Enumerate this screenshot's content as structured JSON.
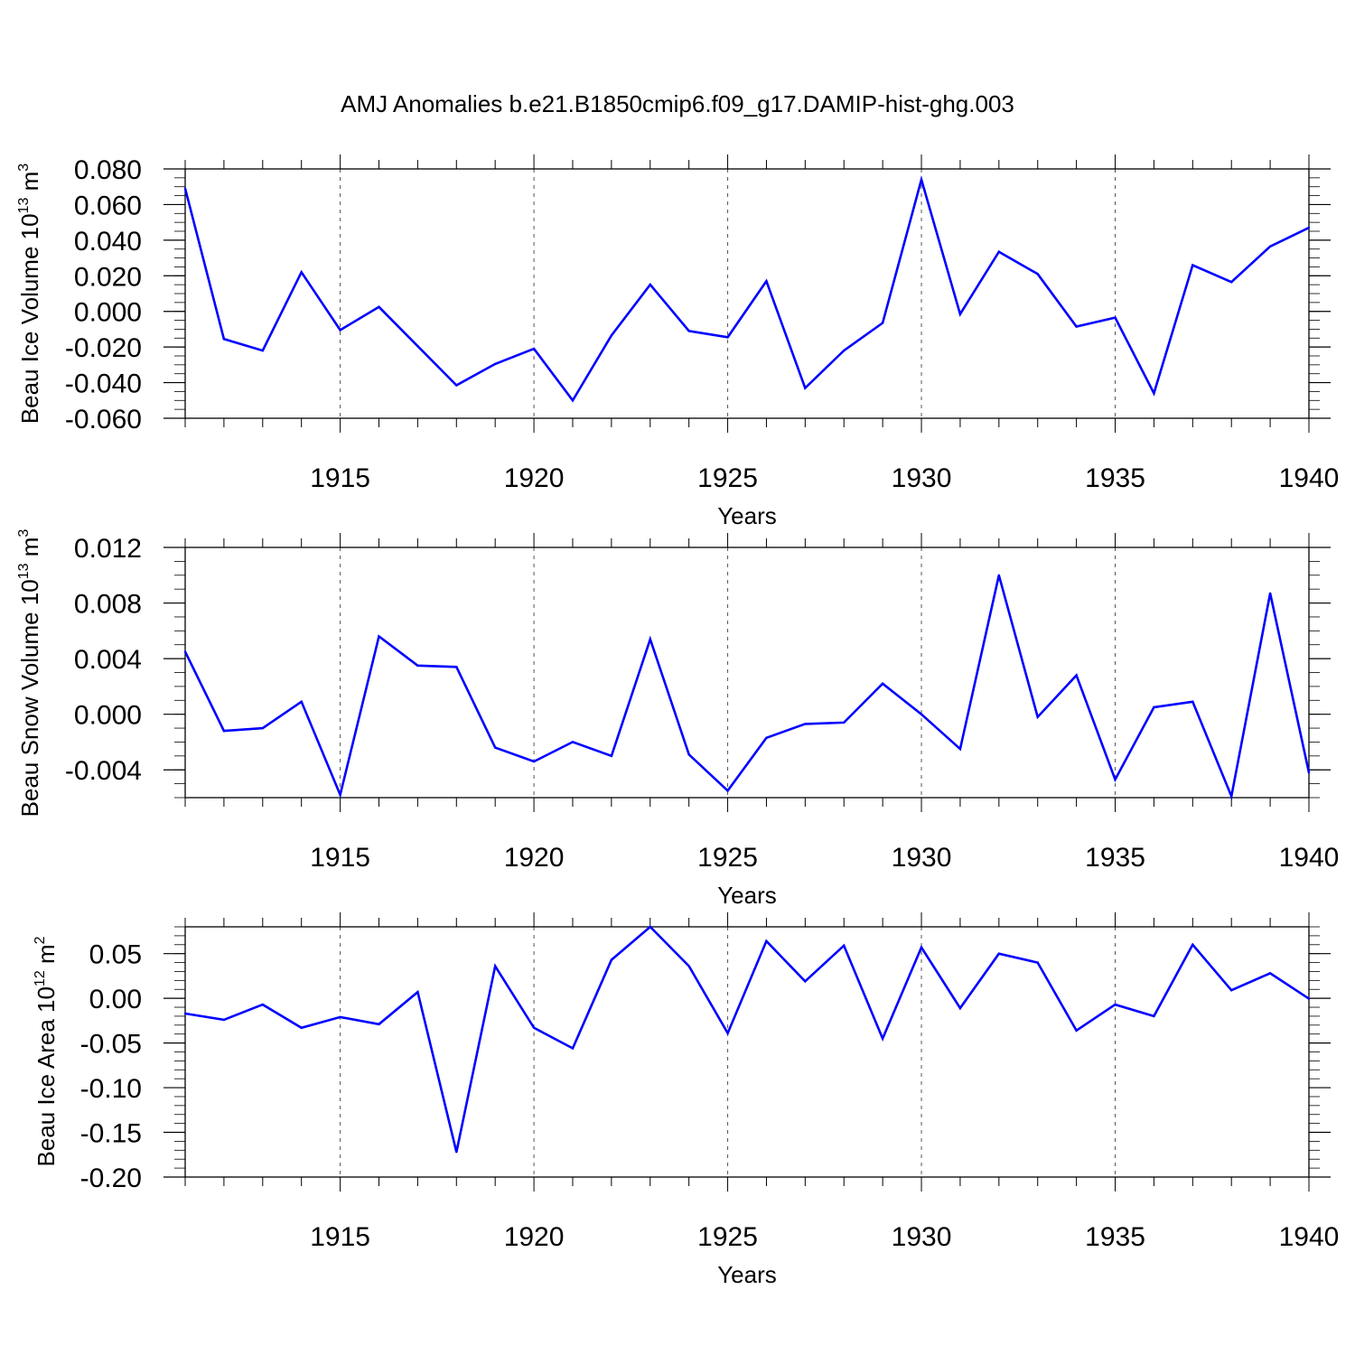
{
  "title": "AMJ Anomalies b.e21.B1850cmip6.f09_g17.DAMIP-hist-ghg.003",
  "line_color": "#0000ff",
  "chart_data": [
    {
      "type": "line",
      "ylabel_parts": [
        "Beau Ice Volume 10",
        "13",
        " m",
        "3"
      ],
      "xlabel": "Years",
      "xlim": [
        1911,
        1940
      ],
      "ylim": [
        -0.06,
        0.08
      ],
      "xticks": [
        1915,
        1920,
        1925,
        1930,
        1935,
        1940
      ],
      "yticks": [
        -0.06,
        -0.04,
        -0.02,
        0.0,
        0.02,
        0.04,
        0.06,
        0.08
      ],
      "ytick_labels": [
        "-0.060",
        "-0.040",
        "-0.020",
        "0.000",
        "0.020",
        "0.040",
        "0.060",
        "0.080"
      ],
      "y_minor_step": 0.005,
      "grid": "dashed vertical at major x ticks",
      "x": [
        1911,
        1912,
        1913,
        1914,
        1915,
        1916,
        1917,
        1918,
        1919,
        1920,
        1921,
        1922,
        1923,
        1924,
        1925,
        1926,
        1927,
        1928,
        1929,
        1930,
        1931,
        1932,
        1933,
        1934,
        1935,
        1936,
        1937,
        1938,
        1939,
        1940
      ],
      "values": [
        0.069,
        -0.0155,
        -0.022,
        0.022,
        -0.0105,
        0.0025,
        -0.0195,
        -0.0415,
        -0.0295,
        -0.021,
        -0.05,
        -0.0135,
        0.015,
        -0.011,
        -0.0145,
        0.017,
        -0.043,
        -0.022,
        -0.0065,
        0.074,
        -0.0015,
        0.0335,
        0.021,
        -0.0085,
        -0.0035,
        -0.046,
        0.026,
        0.0165,
        0.0365,
        0.047
      ]
    },
    {
      "type": "line",
      "ylabel_parts": [
        "Beau Snow Volume 10",
        "13",
        " m",
        "3"
      ],
      "xlabel": "Years",
      "xlim": [
        1911,
        1940
      ],
      "ylim": [
        -0.006,
        0.012
      ],
      "xticks": [
        1915,
        1920,
        1925,
        1930,
        1935,
        1940
      ],
      "yticks": [
        -0.004,
        0.0,
        0.004,
        0.008,
        0.012
      ],
      "ytick_labels": [
        "-0.004",
        "0.000",
        "0.004",
        "0.008",
        "0.012"
      ],
      "y_minor_step": 0.001,
      "grid": "dashed vertical at major x ticks",
      "x": [
        1911,
        1912,
        1913,
        1914,
        1915,
        1916,
        1917,
        1918,
        1919,
        1920,
        1921,
        1922,
        1923,
        1924,
        1925,
        1926,
        1927,
        1928,
        1929,
        1930,
        1931,
        1932,
        1933,
        1934,
        1935,
        1936,
        1937,
        1938,
        1939,
        1940
      ],
      "values": [
        0.0045,
        -0.0012,
        -0.001,
        0.0009,
        -0.0058,
        0.0056,
        0.0035,
        0.0034,
        -0.0024,
        -0.0034,
        -0.002,
        -0.003,
        0.0054,
        -0.0029,
        -0.0055,
        -0.0017,
        -0.0007,
        -0.0006,
        0.0022,
        0.0,
        -0.0025,
        0.01,
        -0.0002,
        0.0028,
        -0.0047,
        0.0005,
        0.0009,
        -0.0059,
        0.0087,
        -0.0042
      ]
    },
    {
      "type": "line",
      "ylabel_parts": [
        "Beau Ice Area 10",
        "12",
        " m",
        "2"
      ],
      "xlabel": "Years",
      "xlim": [
        1911,
        1940
      ],
      "ylim": [
        -0.2,
        0.08
      ],
      "xticks": [
        1915,
        1920,
        1925,
        1930,
        1935,
        1940
      ],
      "yticks": [
        -0.2,
        -0.15,
        -0.1,
        -0.05,
        0.0,
        0.05
      ],
      "ytick_labels": [
        "-0.20",
        "-0.15",
        "-0.10",
        "-0.05",
        "0.00",
        "0.05"
      ],
      "y_minor_step": 0.01,
      "grid": "dashed vertical at major x ticks",
      "x": [
        1911,
        1912,
        1913,
        1914,
        1915,
        1916,
        1917,
        1918,
        1919,
        1920,
        1921,
        1922,
        1923,
        1924,
        1925,
        1926,
        1927,
        1928,
        1929,
        1930,
        1931,
        1932,
        1933,
        1934,
        1935,
        1936,
        1937,
        1938,
        1939,
        1940
      ],
      "values": [
        -0.017,
        -0.024,
        -0.007,
        -0.033,
        -0.021,
        -0.029,
        0.007,
        -0.172,
        0.036,
        -0.033,
        -0.056,
        0.043,
        0.08,
        0.036,
        -0.039,
        0.064,
        0.019,
        0.059,
        -0.045,
        0.057,
        -0.011,
        0.05,
        0.04,
        -0.036,
        -0.007,
        -0.02,
        0.06,
        0.009,
        0.028,
        -0.0005
      ]
    }
  ]
}
